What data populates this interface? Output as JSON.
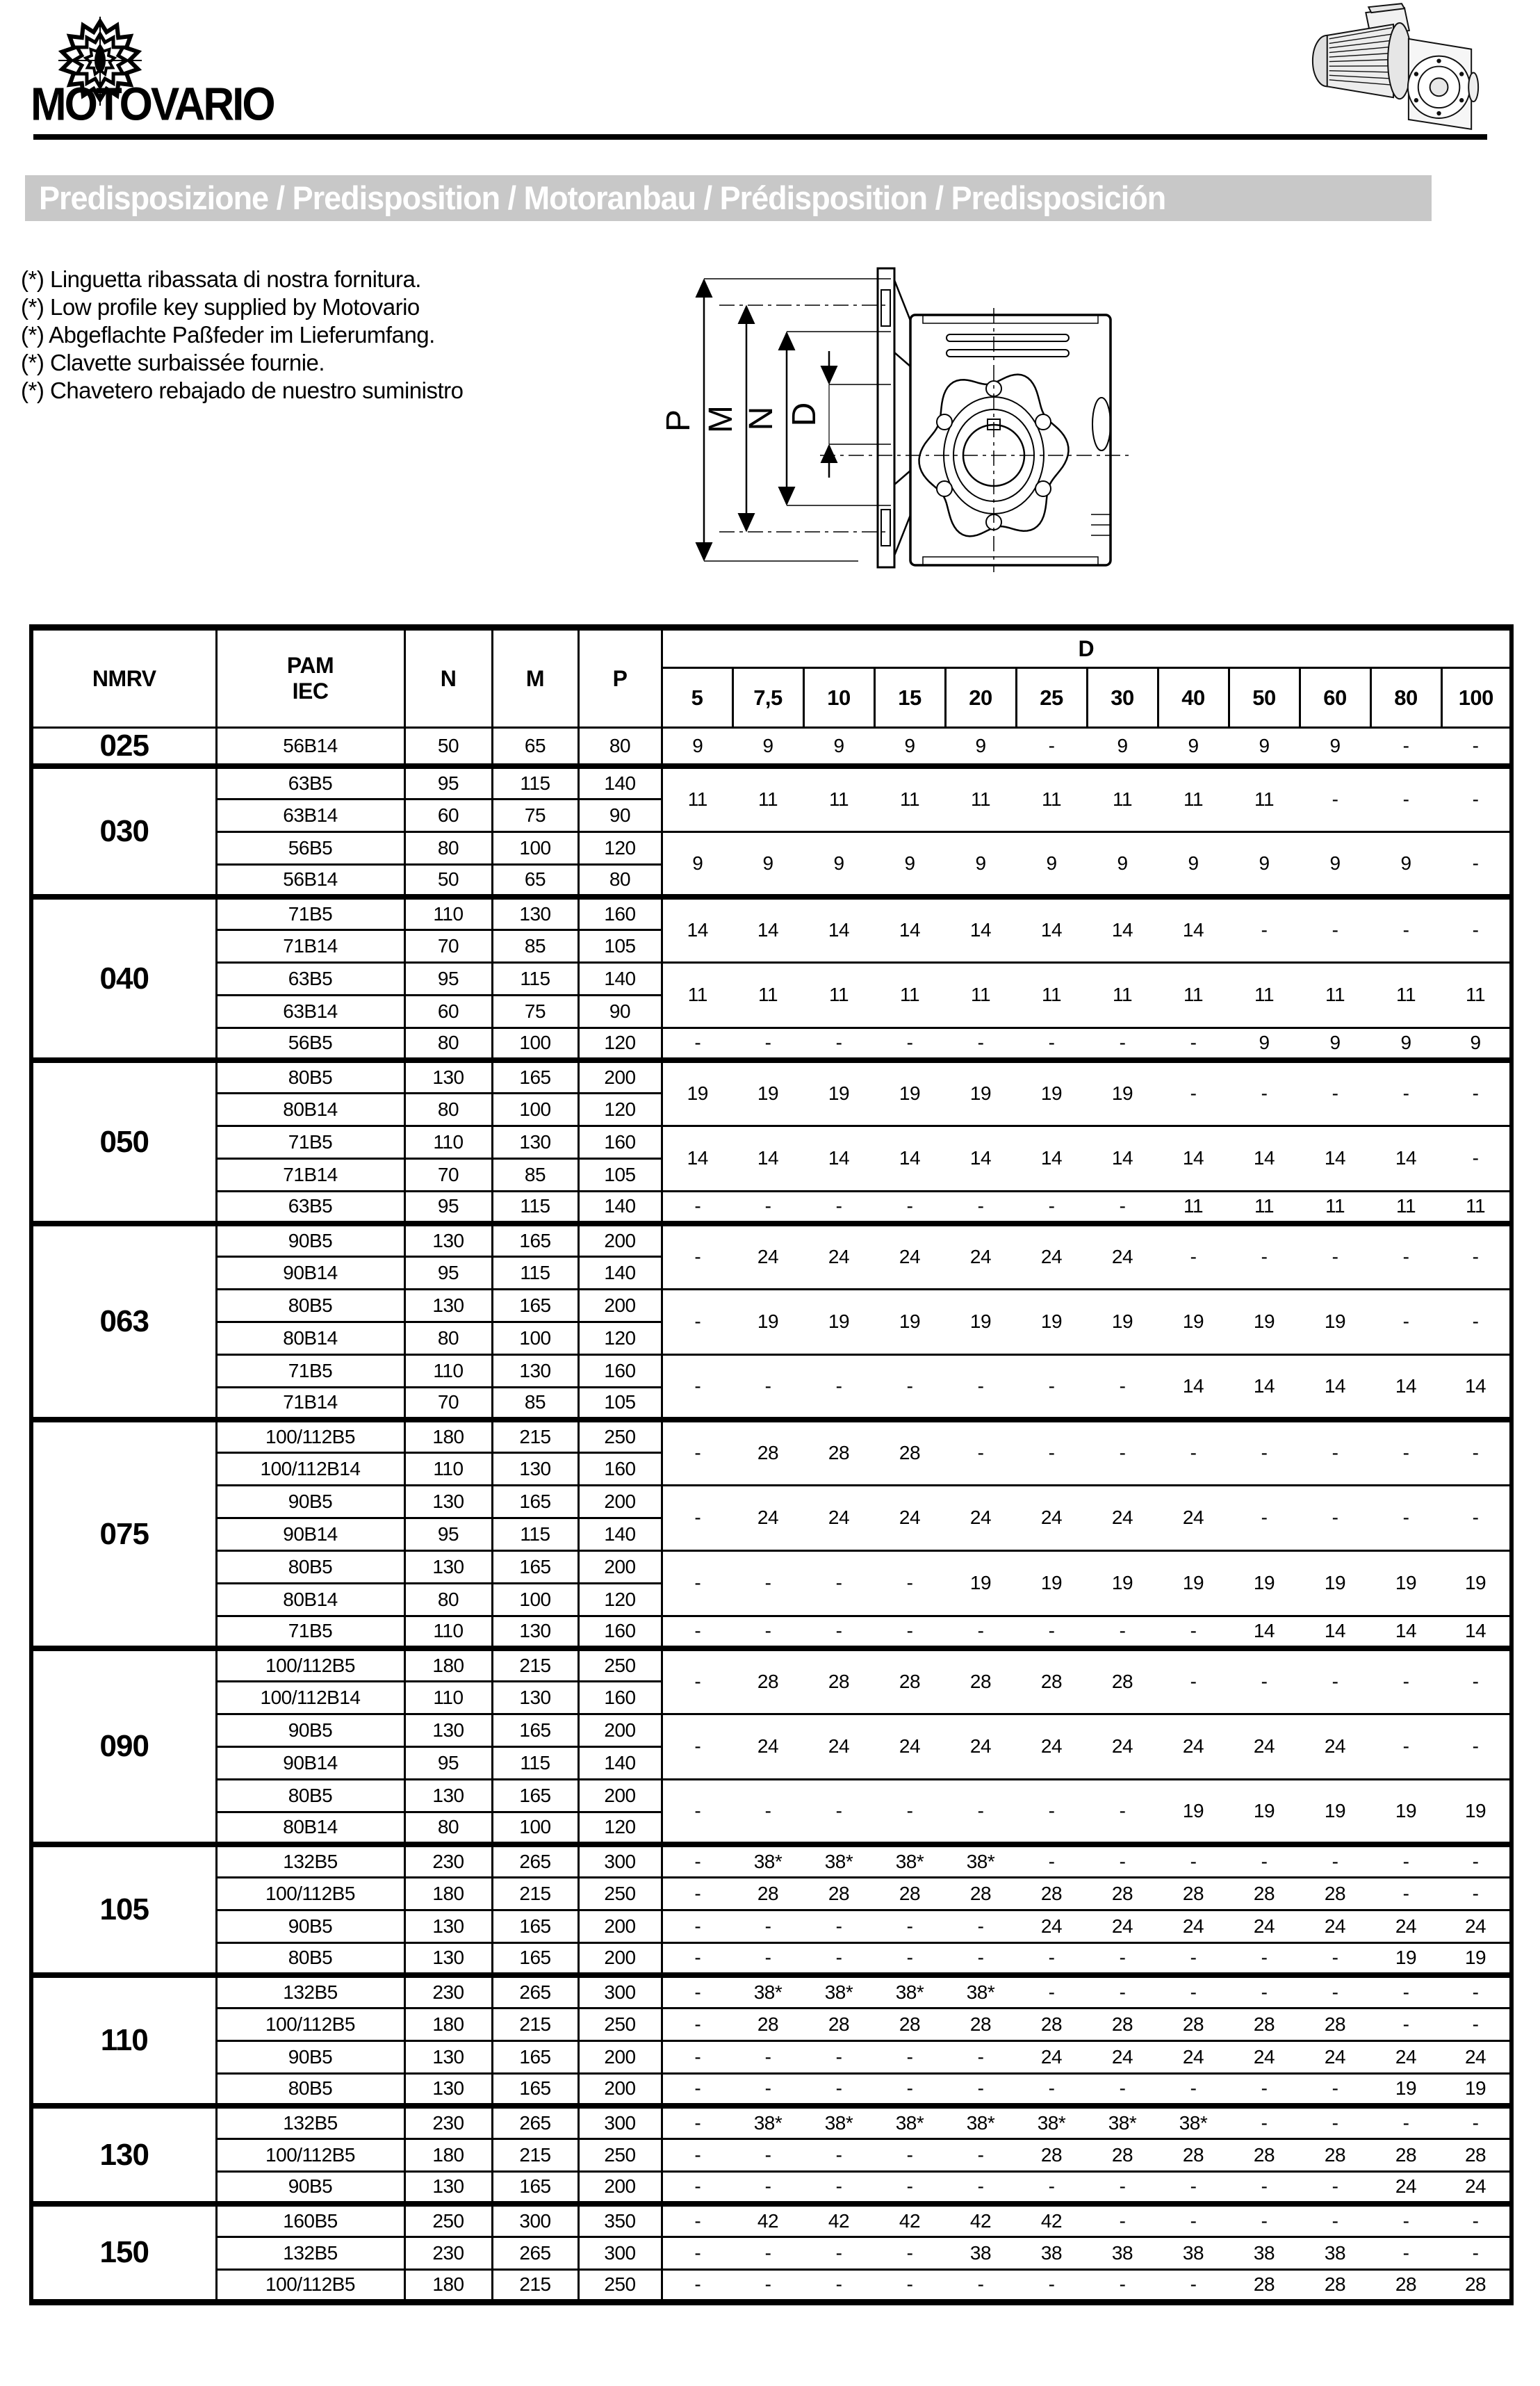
{
  "brand": {
    "wordmark": "MOTOVARIO"
  },
  "title_bar": {
    "text": "Predisposizione / Predisposition / Motoranbau / Prédisposition / Predisposición"
  },
  "notes": [
    "(*) Linguetta ribassata di nostra fornitura.",
    "(*) Low profile key supplied by Motovario",
    "(*) Abgeflachte Paßfeder im Lieferumfang.",
    "(*) Clavette surbaissée fournie.",
    "(*) Chavetero rebajado de nuestro suministro"
  ],
  "diagram": {
    "labels": [
      "P",
      "M",
      "N",
      "D"
    ]
  },
  "table": {
    "headers": {
      "nmrv": "NMRV",
      "pam1": "PAM",
      "pam2": "IEC",
      "n": "N",
      "m": "M",
      "p": "P",
      "d": "D"
    },
    "d_ratios": [
      "5",
      "7,5",
      "10",
      "15",
      "20",
      "25",
      "30",
      "40",
      "50",
      "60",
      "80",
      "100"
    ],
    "groups": [
      {
        "nmrv": "025",
        "subgroups": [
          {
            "rows": [
              {
                "pam": "56B14",
                "n": "50",
                "m": "65",
                "p": "80"
              }
            ],
            "d": [
              "9",
              "9",
              "9",
              "9",
              "9",
              "-",
              "9",
              "9",
              "9",
              "9",
              "-",
              "-"
            ]
          }
        ]
      },
      {
        "nmrv": "030",
        "subgroups": [
          {
            "rows": [
              {
                "pam": "63B5",
                "n": "95",
                "m": "115",
                "p": "140"
              },
              {
                "pam": "63B14",
                "n": "60",
                "m": "75",
                "p": "90"
              }
            ],
            "d": [
              "11",
              "11",
              "11",
              "11",
              "11",
              "11",
              "11",
              "11",
              "11",
              "-",
              "-",
              "-"
            ]
          },
          {
            "rows": [
              {
                "pam": "56B5",
                "n": "80",
                "m": "100",
                "p": "120"
              },
              {
                "pam": "56B14",
                "n": "50",
                "m": "65",
                "p": "80"
              }
            ],
            "d": [
              "9",
              "9",
              "9",
              "9",
              "9",
              "9",
              "9",
              "9",
              "9",
              "9",
              "9",
              "-"
            ]
          }
        ]
      },
      {
        "nmrv": "040",
        "subgroups": [
          {
            "rows": [
              {
                "pam": "71B5",
                "n": "110",
                "m": "130",
                "p": "160"
              },
              {
                "pam": "71B14",
                "n": "70",
                "m": "85",
                "p": "105"
              }
            ],
            "d": [
              "14",
              "14",
              "14",
              "14",
              "14",
              "14",
              "14",
              "14",
              "-",
              "-",
              "-",
              "-"
            ]
          },
          {
            "rows": [
              {
                "pam": "63B5",
                "n": "95",
                "m": "115",
                "p": "140"
              },
              {
                "pam": "63B14",
                "n": "60",
                "m": "75",
                "p": "90"
              }
            ],
            "d": [
              "11",
              "11",
              "11",
              "11",
              "11",
              "11",
              "11",
              "11",
              "11",
              "11",
              "11",
              "11"
            ]
          },
          {
            "rows": [
              {
                "pam": "56B5",
                "n": "80",
                "m": "100",
                "p": "120"
              }
            ],
            "d": [
              "-",
              "-",
              "-",
              "-",
              "-",
              "-",
              "-",
              "-",
              "9",
              "9",
              "9",
              "9"
            ]
          }
        ]
      },
      {
        "nmrv": "050",
        "subgroups": [
          {
            "rows": [
              {
                "pam": "80B5",
                "n": "130",
                "m": "165",
                "p": "200"
              },
              {
                "pam": "80B14",
                "n": "80",
                "m": "100",
                "p": "120"
              }
            ],
            "d": [
              "19",
              "19",
              "19",
              "19",
              "19",
              "19",
              "19",
              "-",
              "-",
              "-",
              "-",
              "-"
            ]
          },
          {
            "rows": [
              {
                "pam": "71B5",
                "n": "110",
                "m": "130",
                "p": "160"
              },
              {
                "pam": "71B14",
                "n": "70",
                "m": "85",
                "p": "105"
              }
            ],
            "d": [
              "14",
              "14",
              "14",
              "14",
              "14",
              "14",
              "14",
              "14",
              "14",
              "14",
              "14",
              "-"
            ]
          },
          {
            "rows": [
              {
                "pam": "63B5",
                "n": "95",
                "m": "115",
                "p": "140"
              }
            ],
            "d": [
              "-",
              "-",
              "-",
              "-",
              "-",
              "-",
              "-",
              "11",
              "11",
              "11",
              "11",
              "11"
            ]
          }
        ]
      },
      {
        "nmrv": "063",
        "subgroups": [
          {
            "rows": [
              {
                "pam": "90B5",
                "n": "130",
                "m": "165",
                "p": "200"
              },
              {
                "pam": "90B14",
                "n": "95",
                "m": "115",
                "p": "140"
              }
            ],
            "d": [
              "-",
              "24",
              "24",
              "24",
              "24",
              "24",
              "24",
              "-",
              "-",
              "-",
              "-",
              "-"
            ]
          },
          {
            "rows": [
              {
                "pam": "80B5",
                "n": "130",
                "m": "165",
                "p": "200"
              },
              {
                "pam": "80B14",
                "n": "80",
                "m": "100",
                "p": "120"
              }
            ],
            "d": [
              "-",
              "19",
              "19",
              "19",
              "19",
              "19",
              "19",
              "19",
              "19",
              "19",
              "-",
              "-"
            ]
          },
          {
            "rows": [
              {
                "pam": "71B5",
                "n": "110",
                "m": "130",
                "p": "160"
              },
              {
                "pam": "71B14",
                "n": "70",
                "m": "85",
                "p": "105"
              }
            ],
            "d": [
              "-",
              "-",
              "-",
              "-",
              "-",
              "-",
              "-",
              "14",
              "14",
              "14",
              "14",
              "14"
            ]
          }
        ]
      },
      {
        "nmrv": "075",
        "subgroups": [
          {
            "rows": [
              {
                "pam": "100/112B5",
                "n": "180",
                "m": "215",
                "p": "250"
              },
              {
                "pam": "100/112B14",
                "n": "110",
                "m": "130",
                "p": "160"
              }
            ],
            "d": [
              "-",
              "28",
              "28",
              "28",
              "-",
              "-",
              "-",
              "-",
              "-",
              "-",
              "-",
              "-"
            ]
          },
          {
            "rows": [
              {
                "pam": "90B5",
                "n": "130",
                "m": "165",
                "p": "200"
              },
              {
                "pam": "90B14",
                "n": "95",
                "m": "115",
                "p": "140"
              }
            ],
            "d": [
              "-",
              "24",
              "24",
              "24",
              "24",
              "24",
              "24",
              "24",
              "-",
              "-",
              "-",
              "-"
            ]
          },
          {
            "rows": [
              {
                "pam": "80B5",
                "n": "130",
                "m": "165",
                "p": "200"
              },
              {
                "pam": "80B14",
                "n": "80",
                "m": "100",
                "p": "120"
              }
            ],
            "d": [
              "-",
              "-",
              "-",
              "-",
              "19",
              "19",
              "19",
              "19",
              "19",
              "19",
              "19",
              "19"
            ]
          },
          {
            "rows": [
              {
                "pam": "71B5",
                "n": "110",
                "m": "130",
                "p": "160"
              }
            ],
            "d": [
              "-",
              "-",
              "-",
              "-",
              "-",
              "-",
              "-",
              "-",
              "14",
              "14",
              "14",
              "14"
            ]
          }
        ]
      },
      {
        "nmrv": "090",
        "subgroups": [
          {
            "rows": [
              {
                "pam": "100/112B5",
                "n": "180",
                "m": "215",
                "p": "250"
              },
              {
                "pam": "100/112B14",
                "n": "110",
                "m": "130",
                "p": "160"
              }
            ],
            "d": [
              "-",
              "28",
              "28",
              "28",
              "28",
              "28",
              "28",
              "-",
              "-",
              "-",
              "-",
              "-"
            ]
          },
          {
            "rows": [
              {
                "pam": "90B5",
                "n": "130",
                "m": "165",
                "p": "200"
              },
              {
                "pam": "90B14",
                "n": "95",
                "m": "115",
                "p": "140"
              }
            ],
            "d": [
              "-",
              "24",
              "24",
              "24",
              "24",
              "24",
              "24",
              "24",
              "24",
              "24",
              "-",
              "-"
            ]
          },
          {
            "rows": [
              {
                "pam": "80B5",
                "n": "130",
                "m": "165",
                "p": "200"
              },
              {
                "pam": "80B14",
                "n": "80",
                "m": "100",
                "p": "120"
              }
            ],
            "d": [
              "-",
              "-",
              "-",
              "-",
              "-",
              "-",
              "-",
              "19",
              "19",
              "19",
              "19",
              "19"
            ]
          }
        ]
      },
      {
        "nmrv": "105",
        "subgroups": [
          {
            "rows": [
              {
                "pam": "132B5",
                "n": "230",
                "m": "265",
                "p": "300"
              }
            ],
            "d": [
              "-",
              "38*",
              "38*",
              "38*",
              "38*",
              "-",
              "-",
              "-",
              "-",
              "-",
              "-",
              "-"
            ]
          },
          {
            "rows": [
              {
                "pam": "100/112B5",
                "n": "180",
                "m": "215",
                "p": "250"
              }
            ],
            "d": [
              "-",
              "28",
              "28",
              "28",
              "28",
              "28",
              "28",
              "28",
              "28",
              "28",
              "-",
              "-"
            ]
          },
          {
            "rows": [
              {
                "pam": "90B5",
                "n": "130",
                "m": "165",
                "p": "200"
              }
            ],
            "d": [
              "-",
              "-",
              "-",
              "-",
              "-",
              "24",
              "24",
              "24",
              "24",
              "24",
              "24",
              "24"
            ]
          },
          {
            "rows": [
              {
                "pam": "80B5",
                "n": "130",
                "m": "165",
                "p": "200"
              }
            ],
            "d": [
              "-",
              "-",
              "-",
              "-",
              "-",
              "-",
              "-",
              "-",
              "-",
              "-",
              "19",
              "19"
            ]
          }
        ]
      },
      {
        "nmrv": "110",
        "subgroups": [
          {
            "rows": [
              {
                "pam": "132B5",
                "n": "230",
                "m": "265",
                "p": "300"
              }
            ],
            "d": [
              "-",
              "38*",
              "38*",
              "38*",
              "38*",
              "-",
              "-",
              "-",
              "-",
              "-",
              "-",
              "-"
            ]
          },
          {
            "rows": [
              {
                "pam": "100/112B5",
                "n": "180",
                "m": "215",
                "p": "250"
              }
            ],
            "d": [
              "-",
              "28",
              "28",
              "28",
              "28",
              "28",
              "28",
              "28",
              "28",
              "28",
              "-",
              "-"
            ]
          },
          {
            "rows": [
              {
                "pam": "90B5",
                "n": "130",
                "m": "165",
                "p": "200"
              }
            ],
            "d": [
              "-",
              "-",
              "-",
              "-",
              "-",
              "24",
              "24",
              "24",
              "24",
              "24",
              "24",
              "24"
            ]
          },
          {
            "rows": [
              {
                "pam": "80B5",
                "n": "130",
                "m": "165",
                "p": "200"
              }
            ],
            "d": [
              "-",
              "-",
              "-",
              "-",
              "-",
              "-",
              "-",
              "-",
              "-",
              "-",
              "19",
              "19"
            ]
          }
        ]
      },
      {
        "nmrv": "130",
        "subgroups": [
          {
            "rows": [
              {
                "pam": "132B5",
                "n": "230",
                "m": "265",
                "p": "300"
              }
            ],
            "d": [
              "-",
              "38*",
              "38*",
              "38*",
              "38*",
              "38*",
              "38*",
              "38*",
              "-",
              "-",
              "-",
              "-"
            ]
          },
          {
            "rows": [
              {
                "pam": "100/112B5",
                "n": "180",
                "m": "215",
                "p": "250"
              }
            ],
            "d": [
              "-",
              "-",
              "-",
              "-",
              "-",
              "28",
              "28",
              "28",
              "28",
              "28",
              "28",
              "28"
            ]
          },
          {
            "rows": [
              {
                "pam": "90B5",
                "n": "130",
                "m": "165",
                "p": "200"
              }
            ],
            "d": [
              "-",
              "-",
              "-",
              "-",
              "-",
              "-",
              "-",
              "-",
              "-",
              "-",
              "24",
              "24"
            ]
          }
        ]
      },
      {
        "nmrv": "150",
        "subgroups": [
          {
            "rows": [
              {
                "pam": "160B5",
                "n": "250",
                "m": "300",
                "p": "350"
              }
            ],
            "d": [
              "-",
              "42",
              "42",
              "42",
              "42",
              "42",
              "-",
              "-",
              "-",
              "-",
              "-",
              "-"
            ]
          },
          {
            "rows": [
              {
                "pam": "132B5",
                "n": "230",
                "m": "265",
                "p": "300"
              }
            ],
            "d": [
              "-",
              "-",
              "-",
              "-",
              "38",
              "38",
              "38",
              "38",
              "38",
              "38",
              "-",
              "-"
            ]
          },
          {
            "rows": [
              {
                "pam": "100/112B5",
                "n": "180",
                "m": "215",
                "p": "250"
              }
            ],
            "d": [
              "-",
              "-",
              "-",
              "-",
              "-",
              "-",
              "-",
              "-",
              "28",
              "28",
              "28",
              "28"
            ]
          }
        ]
      }
    ]
  }
}
